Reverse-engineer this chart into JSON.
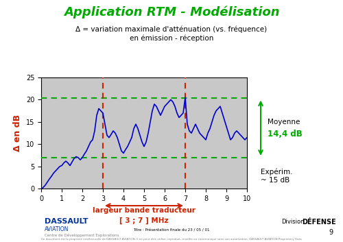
{
  "title": "Application RTM - Modélisation",
  "subtitle1": "Δ = variation maximale d'atténuation (vs. fréquence)",
  "subtitle2": "en émission - réception",
  "ylabel": "Δ en dB",
  "xlim": [
    0,
    10
  ],
  "ylim": [
    0,
    25
  ],
  "xticks": [
    0,
    1,
    2,
    3,
    4,
    5,
    6,
    7,
    8,
    9,
    10
  ],
  "yticks": [
    0,
    5,
    10,
    15,
    20,
    25
  ],
  "bg_color": "#c8c8c8",
  "mean_upper": 20.3,
  "mean_lower": 7.0,
  "band_start": 3,
  "band_end": 7,
  "band_label1": "largeur bande traducteur",
  "band_label2": "[ 3 ; 7 ] MHz",
  "moyenne_label": "Moyenne",
  "moyenne_val": "14,4 dB",
  "experim_label": "Expérim.",
  "experim_val": "~ 15 dB",
  "line_color": "#0000cc",
  "dashed_color": "#00aa00",
  "vline_color": "#cc2200",
  "arrow_color": "#00aa00",
  "band_arrow_color": "#cc2200",
  "title_color": "#00aa00",
  "ylabel_color": "#cc2200",
  "band_label_color": "#cc2200",
  "x_data": [
    0.0,
    0.1,
    0.2,
    0.3,
    0.4,
    0.5,
    0.6,
    0.7,
    0.8,
    0.9,
    1.0,
    1.1,
    1.2,
    1.3,
    1.4,
    1.5,
    1.6,
    1.7,
    1.8,
    1.9,
    2.0,
    2.1,
    2.2,
    2.3,
    2.4,
    2.5,
    2.6,
    2.7,
    2.8,
    2.9,
    3.0,
    3.1,
    3.2,
    3.3,
    3.4,
    3.5,
    3.6,
    3.7,
    3.8,
    3.9,
    4.0,
    4.1,
    4.2,
    4.3,
    4.4,
    4.5,
    4.6,
    4.7,
    4.8,
    4.9,
    5.0,
    5.1,
    5.2,
    5.3,
    5.4,
    5.5,
    5.6,
    5.7,
    5.8,
    5.9,
    6.0,
    6.1,
    6.2,
    6.3,
    6.4,
    6.5,
    6.6,
    6.7,
    6.8,
    6.9,
    7.0,
    7.1,
    7.2,
    7.3,
    7.4,
    7.5,
    7.6,
    7.7,
    7.8,
    7.9,
    8.0,
    8.1,
    8.2,
    8.3,
    8.4,
    8.5,
    8.6,
    8.7,
    8.8,
    8.9,
    9.0,
    9.1,
    9.2,
    9.3,
    9.4,
    9.5,
    9.6,
    9.7,
    9.8,
    9.9,
    10.0
  ],
  "y_data": [
    0.0,
    0.3,
    0.8,
    1.5,
    2.2,
    2.8,
    3.5,
    4.0,
    4.5,
    5.0,
    5.2,
    5.8,
    6.2,
    5.8,
    5.2,
    6.0,
    6.8,
    7.2,
    7.0,
    6.5,
    7.0,
    7.8,
    8.5,
    9.5,
    10.5,
    11.0,
    13.0,
    16.5,
    18.0,
    17.5,
    17.0,
    14.5,
    12.0,
    11.5,
    12.2,
    13.0,
    12.5,
    11.5,
    10.0,
    8.5,
    8.0,
    8.8,
    9.5,
    10.5,
    11.5,
    13.5,
    14.5,
    13.5,
    12.0,
    10.5,
    9.5,
    10.5,
    12.5,
    15.0,
    17.5,
    19.0,
    18.5,
    17.5,
    16.5,
    17.5,
    18.5,
    19.0,
    19.5,
    20.0,
    19.5,
    18.5,
    17.0,
    16.0,
    16.5,
    17.0,
    20.5,
    14.5,
    13.0,
    12.5,
    13.5,
    14.5,
    13.5,
    12.5,
    12.0,
    11.5,
    11.0,
    12.5,
    13.5,
    15.0,
    16.5,
    17.5,
    18.0,
    18.5,
    17.0,
    15.5,
    14.0,
    12.5,
    11.0,
    11.5,
    12.5,
    13.0,
    12.5,
    12.0,
    11.5,
    11.0,
    11.5
  ]
}
